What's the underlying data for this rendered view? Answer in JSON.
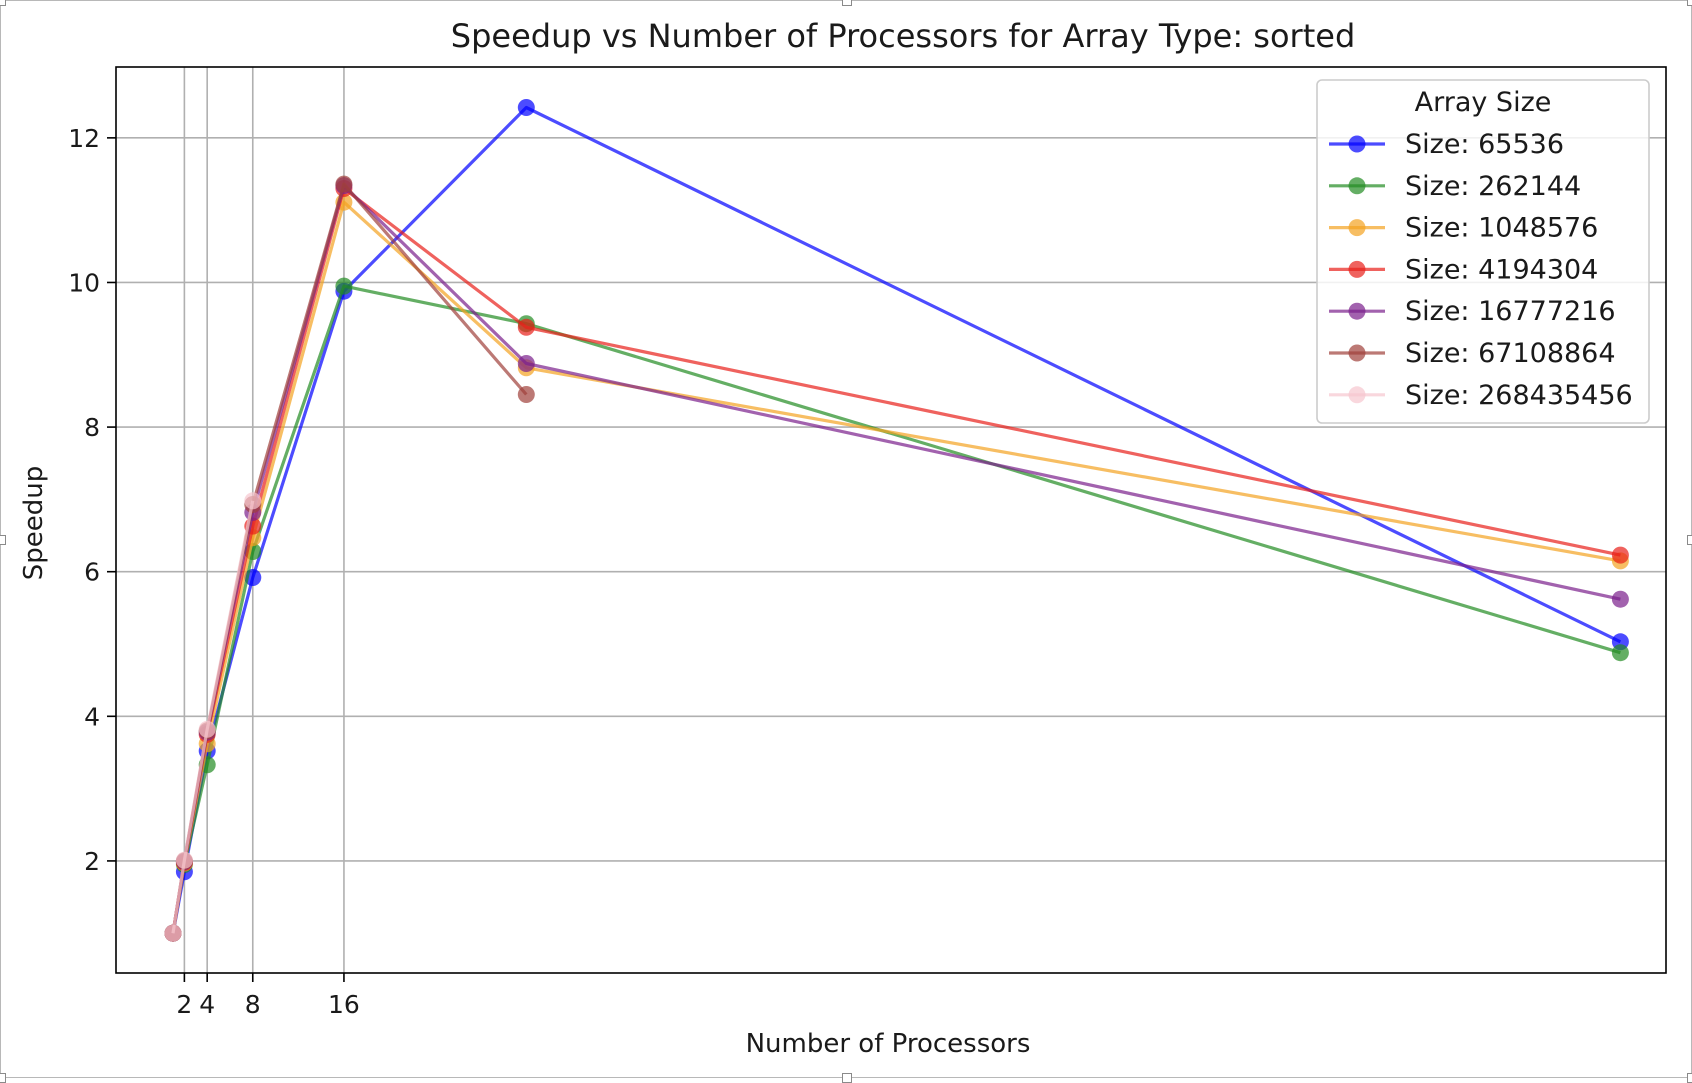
{
  "chart_data": {
    "type": "line",
    "title": "Speedup vs Number of Processors for Array Type: sorted",
    "xlabel": "Number of Processors",
    "ylabel": "Speedup",
    "x_ticks": [
      2,
      4,
      8,
      16
    ],
    "x_tick_labels": [
      "2",
      "4",
      "8",
      "16"
    ],
    "y_ticks": [
      2,
      4,
      6,
      8,
      10,
      12
    ],
    "y_tick_labels": [
      "2",
      "4",
      "6",
      "8",
      "10",
      "12"
    ],
    "xlim": [
      -4,
      132
    ],
    "ylim": [
      0.45,
      12.98
    ],
    "grid": true,
    "legend": {
      "title": "Array Size",
      "placement": "top-right"
    },
    "x": [
      1,
      2,
      4,
      8,
      16,
      32,
      64,
      128
    ],
    "series": [
      {
        "name": "Size: 65536",
        "color": "#0000ff",
        "values": [
          1.0,
          1.85,
          3.52,
          5.92,
          9.88,
          12.42,
          null,
          5.03
        ]
      },
      {
        "name": "Size: 262144",
        "color": "#228b22",
        "values": [
          1.0,
          1.95,
          3.33,
          6.28,
          9.95,
          9.43,
          null,
          4.88
        ]
      },
      {
        "name": "Size: 1048576",
        "color": "#f4a321",
        "values": [
          1.0,
          1.97,
          3.62,
          6.47,
          11.11,
          8.82,
          null,
          6.15
        ]
      },
      {
        "name": "Size: 4194304",
        "color": "#e8201a",
        "values": [
          1.0,
          1.98,
          3.75,
          6.63,
          11.3,
          9.38,
          null,
          6.23
        ]
      },
      {
        "name": "Size: 16777216",
        "color": "#7b1f8c",
        "values": [
          1.0,
          1.99,
          3.78,
          6.82,
          11.34,
          8.88,
          null,
          5.62
        ]
      },
      {
        "name": "Size: 67108864",
        "color": "#a0403a",
        "values": [
          1.0,
          2.0,
          3.8,
          6.93,
          11.36,
          8.45,
          null,
          null
        ]
      },
      {
        "name": "Size: 268435456",
        "color": "#f7c6cf",
        "values": [
          1.0,
          2.01,
          3.82,
          6.98,
          null,
          null,
          null,
          null
        ]
      }
    ]
  }
}
